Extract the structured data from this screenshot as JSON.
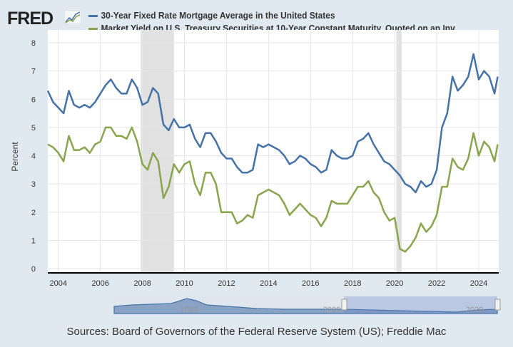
{
  "logo": "FRED",
  "source": "Sources: Board of Governors of the Federal Reserve System (US); Freddie Mac",
  "navigator": {
    "labels": [
      "1980",
      "2000",
      "2020"
    ]
  },
  "chart_data": {
    "type": "line",
    "ylabel": "Percent",
    "ylim": [
      0,
      8
    ],
    "xlim": [
      2003.5,
      2024.95
    ],
    "yticks": [
      "0",
      "1",
      "2",
      "3",
      "4",
      "5",
      "6",
      "7",
      "8"
    ],
    "xticks": [
      "2004",
      "2006",
      "2008",
      "2010",
      "2012",
      "2014",
      "2016",
      "2018",
      "2020",
      "2022",
      "2024"
    ],
    "grid": "vertical and horizontal",
    "legend": "top",
    "recessions": [
      [
        2007.92,
        2009.5
      ],
      [
        2020.08,
        2020.33
      ]
    ],
    "x": [
      2003.5,
      2003.75,
      2004.0,
      2004.25,
      2004.5,
      2004.75,
      2005.0,
      2005.25,
      2005.5,
      2005.75,
      2006.0,
      2006.25,
      2006.5,
      2006.75,
      2007.0,
      2007.25,
      2007.5,
      2007.75,
      2008.0,
      2008.25,
      2008.5,
      2008.75,
      2009.0,
      2009.25,
      2009.5,
      2009.75,
      2010.0,
      2010.25,
      2010.5,
      2010.75,
      2011.0,
      2011.25,
      2011.5,
      2011.75,
      2012.0,
      2012.25,
      2012.5,
      2012.75,
      2013.0,
      2013.25,
      2013.5,
      2013.75,
      2014.0,
      2014.25,
      2014.5,
      2014.75,
      2015.0,
      2015.25,
      2015.5,
      2015.75,
      2016.0,
      2016.25,
      2016.5,
      2016.75,
      2017.0,
      2017.25,
      2017.5,
      2017.75,
      2018.0,
      2018.25,
      2018.5,
      2018.75,
      2019.0,
      2019.25,
      2019.5,
      2019.75,
      2020.0,
      2020.25,
      2020.5,
      2020.75,
      2021.0,
      2021.25,
      2021.5,
      2021.75,
      2022.0,
      2022.25,
      2022.5,
      2022.75,
      2023.0,
      2023.25,
      2023.5,
      2023.75,
      2024.0,
      2024.25,
      2024.5,
      2024.75,
      2024.9
    ],
    "series": [
      {
        "name": "30-Year Fixed Rate Mortgage Average in the United States",
        "color": "#4572a7",
        "values": [
          6.3,
          5.9,
          5.7,
          5.5,
          6.3,
          5.8,
          5.7,
          5.8,
          5.7,
          5.9,
          6.2,
          6.5,
          6.7,
          6.4,
          6.2,
          6.2,
          6.7,
          6.4,
          5.8,
          5.9,
          6.4,
          6.2,
          5.1,
          4.9,
          5.3,
          5.0,
          5.0,
          5.1,
          4.6,
          4.3,
          4.8,
          4.8,
          4.5,
          4.1,
          3.9,
          3.9,
          3.6,
          3.4,
          3.4,
          3.5,
          4.4,
          4.3,
          4.4,
          4.3,
          4.2,
          4.0,
          3.7,
          3.8,
          4.0,
          3.9,
          3.7,
          3.6,
          3.4,
          3.5,
          4.2,
          4.0,
          3.9,
          3.9,
          4.0,
          4.5,
          4.6,
          4.8,
          4.4,
          4.1,
          3.8,
          3.7,
          3.5,
          3.3,
          3.0,
          2.9,
          2.7,
          3.1,
          2.9,
          3.0,
          3.5,
          5.0,
          5.5,
          6.8,
          6.3,
          6.5,
          6.8,
          7.6,
          6.7,
          7.0,
          6.8,
          6.2,
          6.8
        ]
      },
      {
        "name": "Market Yield on U.S. Treasury Securities at 10-Year Constant Maturity, Quoted on an Inv",
        "color": "#89a54e",
        "values": [
          4.4,
          4.3,
          4.1,
          3.8,
          4.7,
          4.2,
          4.2,
          4.3,
          4.1,
          4.4,
          4.5,
          5.0,
          5.0,
          4.7,
          4.7,
          4.6,
          5.0,
          4.5,
          3.7,
          3.5,
          4.1,
          3.8,
          2.5,
          2.9,
          3.7,
          3.4,
          3.7,
          3.8,
          3.0,
          2.6,
          3.4,
          3.4,
          3.0,
          2.0,
          2.0,
          2.0,
          1.6,
          1.7,
          1.9,
          1.8,
          2.6,
          2.7,
          2.8,
          2.7,
          2.6,
          2.3,
          1.9,
          2.1,
          2.3,
          2.1,
          1.9,
          1.8,
          1.5,
          1.8,
          2.4,
          2.3,
          2.3,
          2.3,
          2.6,
          2.9,
          2.9,
          3.1,
          2.7,
          2.5,
          2.0,
          1.7,
          1.8,
          0.7,
          0.6,
          0.8,
          1.1,
          1.6,
          1.3,
          1.5,
          1.9,
          2.9,
          2.9,
          3.9,
          3.6,
          3.5,
          3.9,
          4.8,
          4.0,
          4.5,
          4.3,
          3.8,
          4.4
        ]
      }
    ]
  }
}
